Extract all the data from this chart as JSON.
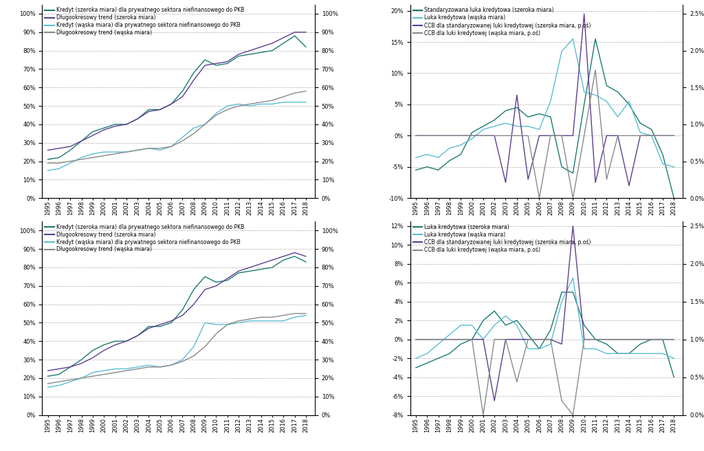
{
  "years": [
    1995,
    1996,
    1997,
    1998,
    1999,
    2000,
    2001,
    2002,
    2003,
    2004,
    2005,
    2006,
    2007,
    2008,
    2009,
    2010,
    2011,
    2012,
    2013,
    2014,
    2015,
    2016,
    2017,
    2018
  ],
  "tl_credit_broad": [
    21,
    22,
    26,
    31,
    36,
    38,
    40,
    40,
    43,
    48,
    48,
    51,
    58,
    68,
    75,
    72,
    73,
    77,
    78,
    79,
    80,
    84,
    88,
    82
  ],
  "tl_trend_broad": [
    26,
    27,
    28,
    31,
    34,
    37,
    39,
    40,
    43,
    47,
    48,
    51,
    55,
    64,
    72,
    73,
    74,
    78,
    80,
    82,
    84,
    87,
    90,
    90
  ],
  "tl_credit_narrow": [
    15,
    16,
    19,
    22,
    24,
    25,
    25,
    25,
    26,
    27,
    26,
    28,
    33,
    38,
    40,
    46,
    50,
    51,
    50,
    51,
    51,
    52,
    52,
    52
  ],
  "tl_trend_narrow": [
    19,
    19,
    20,
    21,
    22,
    23,
    24,
    25,
    26,
    27,
    27,
    28,
    31,
    35,
    40,
    45,
    48,
    50,
    51,
    52,
    53,
    55,
    57,
    58
  ],
  "tr_std_gap_broad": [
    -5.5,
    -5.0,
    -5.5,
    -4.0,
    -3.0,
    0.5,
    1.5,
    2.5,
    4.0,
    4.5,
    3.0,
    3.5,
    3.0,
    -5.0,
    -6.0,
    5.0,
    15.5,
    8.0,
    7.0,
    5.0,
    2.0,
    1.0,
    -3.0,
    -10.0
  ],
  "tr_gap_narrow": [
    -3.5,
    -3.0,
    -3.5,
    -2.0,
    -1.5,
    -0.5,
    1.0,
    1.5,
    2.0,
    1.5,
    1.5,
    1.0,
    5.5,
    13.5,
    15.5,
    7.0,
    6.5,
    5.5,
    3.0,
    5.5,
    0.5,
    0.0,
    -4.5,
    -5.0
  ],
  "tr_ccb_broad": [
    0,
    0,
    0,
    0,
    0,
    0,
    0,
    0,
    -7.5,
    6.5,
    -7.0,
    0,
    0,
    0,
    0,
    19.5,
    -7.5,
    0,
    0,
    -8.0,
    0,
    0,
    0,
    0
  ],
  "tr_ccb_narrow": [
    0,
    0,
    0,
    0,
    0,
    0,
    0,
    0,
    0,
    0,
    0,
    -10,
    0,
    0,
    -10,
    0,
    10.5,
    -7.0,
    0,
    0,
    0,
    0,
    0,
    0
  ],
  "bl_credit_broad": [
    21,
    22,
    26,
    30,
    35,
    38,
    40,
    40,
    43,
    48,
    48,
    50,
    57,
    68,
    75,
    72,
    73,
    77,
    78,
    79,
    80,
    84,
    86,
    83
  ],
  "bl_trend_broad": [
    24,
    25,
    26,
    28,
    31,
    35,
    38,
    40,
    43,
    47,
    49,
    51,
    54,
    60,
    68,
    70,
    74,
    78,
    80,
    82,
    84,
    86,
    88,
    86
  ],
  "bl_credit_narrow": [
    15,
    16,
    18,
    20,
    23,
    24,
    25,
    25,
    26,
    27,
    26,
    27,
    30,
    37,
    50,
    49,
    49,
    50,
    51,
    51,
    51,
    51,
    53,
    54
  ],
  "bl_trend_narrow": [
    17,
    18,
    19,
    20,
    21,
    22,
    23,
    24,
    25,
    26,
    26,
    27,
    29,
    32,
    37,
    44,
    49,
    51,
    52,
    53,
    53,
    54,
    55,
    55
  ],
  "br_gap_broad": [
    -3.0,
    -2.5,
    -2.0,
    -1.5,
    -0.5,
    0.0,
    2.0,
    3.0,
    1.5,
    2.0,
    0.5,
    -1.0,
    1.0,
    5.0,
    5.0,
    1.5,
    0.0,
    -0.5,
    -1.5,
    -1.5,
    -0.5,
    0.0,
    0.0,
    -4.0
  ],
  "br_gap_narrow": [
    -2.0,
    -1.5,
    -0.5,
    0.5,
    1.5,
    1.5,
    0.0,
    1.5,
    2.5,
    1.5,
    -1.0,
    -1.0,
    -0.5,
    4.0,
    6.5,
    -1.0,
    -1.0,
    -1.5,
    -1.5,
    -1.5,
    -1.5,
    -1.5,
    -1.5,
    -2.0
  ],
  "br_ccb_broad": [
    0,
    0,
    0,
    0,
    0,
    0,
    0,
    -6.5,
    0,
    0,
    0,
    0,
    0,
    -0.5,
    12.0,
    0,
    0,
    0,
    0,
    0,
    0,
    0,
    0,
    0
  ],
  "br_ccb_narrow": [
    0,
    0,
    0,
    0,
    0,
    0,
    -8.0,
    0,
    0,
    -4.5,
    0,
    0,
    0,
    -6.5,
    -8.0,
    0,
    0,
    0,
    0,
    0,
    0,
    0,
    0,
    0
  ],
  "color_dark_teal": "#1a7a6e",
  "color_purple": "#5c3d8f",
  "color_light_blue": "#5bbcd4",
  "color_gray": "#888888",
  "legend_tl": [
    "Kredyt (szeroka miara) dla prywatnego sektora niefinansowego do PKB",
    "Długookresowy trend (szeroka miara)",
    "Kredyt (wąska miara) dla prywatnego sektora niefinansowego do PKB",
    "Długookresowy trend (wąska miara)"
  ],
  "legend_tr": [
    "Standaryzowana luka kredytowa (szeroka miara)",
    "Luka kredytowa (wąska miara)",
    "CCB dla standaryzowanej luki kredytowej (szeroka miara, p.oś)",
    "CCB dla luki kredytowej (wąska miara, p.oś)"
  ],
  "legend_bl": [
    "Kredyt (szeroka miara) dla prywatnego sektora niefinansowego do PKB",
    "Długookresowy trend (szeroka miara)",
    "Kredyt (wąska miara) dla prywatnego sektora niefinansowego do PKB",
    "Długookresowy trend (wąska miara)"
  ],
  "legend_br": [
    "Luka kredytowa (szeroka miara)",
    "Luka kredytowa (wąska miara)",
    "CCB dla standaryzowanej luki kredytowej (szeroka miara, p.oś)",
    "CCB dla luki kredytowej (wąska miara, p.oś)"
  ]
}
